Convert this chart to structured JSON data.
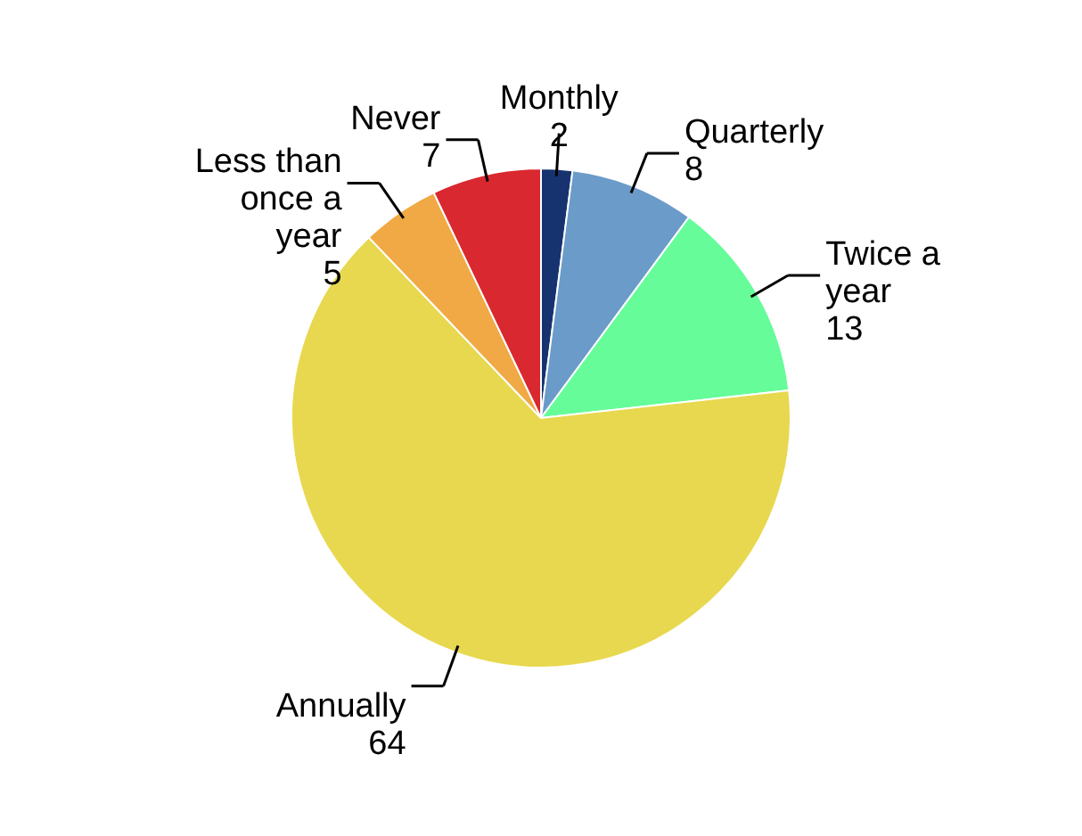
{
  "chart_data": {
    "type": "pie",
    "categories": [
      "Monthly",
      "Quarterly",
      "Twice a year",
      "Annually",
      "Less than once a year",
      "Never"
    ],
    "values": [
      2,
      8,
      13,
      64,
      5,
      7
    ],
    "colors": [
      "#17336f",
      "#6b9bc8",
      "#66fc99",
      "#e8d84f",
      "#f0a944",
      "#d9282f"
    ],
    "data_labels": true
  }
}
